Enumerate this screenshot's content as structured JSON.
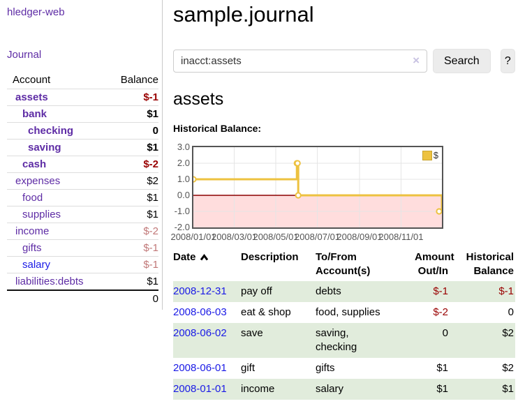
{
  "app": {
    "brand": "hledger-web",
    "nav_journal": "Journal"
  },
  "sidebar": {
    "headers": {
      "account": "Account",
      "balance": "Balance"
    },
    "accounts": [
      {
        "name": "assets",
        "balance": "$-1"
      },
      {
        "name": "bank",
        "balance": "$1"
      },
      {
        "name": "checking",
        "balance": "0"
      },
      {
        "name": "saving",
        "balance": "$1"
      },
      {
        "name": "cash",
        "balance": "$-2"
      },
      {
        "name": "expenses",
        "balance": "$2"
      },
      {
        "name": "food",
        "balance": "$1"
      },
      {
        "name": "supplies",
        "balance": "$1"
      },
      {
        "name": "income",
        "balance": "$-2"
      },
      {
        "name": "gifts",
        "balance": "$-1"
      },
      {
        "name": "salary",
        "balance": "$-1"
      },
      {
        "name": "liabilities:debts",
        "balance": "$1"
      }
    ],
    "total": "0"
  },
  "header": {
    "title": "sample.journal"
  },
  "search": {
    "value": "inacct:assets",
    "clear_icon": "×",
    "button_label": "Search",
    "help_label": "?"
  },
  "account_page": {
    "heading": "assets",
    "chart_title": "Historical Balance:"
  },
  "chart_data": {
    "type": "line",
    "title": "Historical Balance:",
    "step": true,
    "x_range_days": [
      0,
      365
    ],
    "ylim": [
      -2,
      3
    ],
    "yticks": [
      3.0,
      2.0,
      1.0,
      0.0,
      -1.0,
      -2.0
    ],
    "xticks": [
      {
        "day": 0,
        "label": "2008/01/01"
      },
      {
        "day": 60,
        "label": "2008/03/01"
      },
      {
        "day": 121,
        "label": "2008/05/01"
      },
      {
        "day": 182,
        "label": "2008/07/01"
      },
      {
        "day": 244,
        "label": "2008/09/01"
      },
      {
        "day": 305,
        "label": "2008/11/01"
      }
    ],
    "series": [
      {
        "name": "$",
        "color": "#edc240",
        "dates": [
          "2008-01-01",
          "2008-06-01",
          "2008-06-02",
          "2008-06-03",
          "2008-12-31"
        ],
        "x_days": [
          0,
          152,
          153,
          154,
          365
        ],
        "values": [
          1,
          2,
          2,
          0,
          -1
        ]
      }
    ],
    "grid_color": "#e5e5e5",
    "zero_line_color": "#8b0000",
    "negative_region_color": "#ffdddd",
    "legend_position": "top-right"
  },
  "register": {
    "headers": {
      "date": "Date",
      "description": "Description",
      "tofrom_line1": "To/From",
      "tofrom_line2": "Account(s)",
      "amount_line1": "Amount",
      "amount_line2": "Out/In",
      "balance_line1": "Historical",
      "balance_line2": "Balance"
    },
    "rows": [
      {
        "date": "2008-12-31",
        "description": "pay off",
        "accounts_line1": "debts",
        "accounts_line2": "",
        "amount": "$-1",
        "balance": "$-1"
      },
      {
        "date": "2008-06-03",
        "description": "eat & shop",
        "accounts_line1": "food, supplies",
        "accounts_line2": "",
        "amount": "$-2",
        "balance": "0"
      },
      {
        "date": "2008-06-02",
        "description": "save",
        "accounts_line1": "saving,",
        "accounts_line2": "checking",
        "amount": "0",
        "balance": "$2"
      },
      {
        "date": "2008-06-01",
        "description": "gift",
        "accounts_line1": "gifts",
        "accounts_line2": "",
        "amount": "$1",
        "balance": "$2"
      },
      {
        "date": "2008-01-01",
        "description": "income",
        "accounts_line1": "salary",
        "accounts_line2": "",
        "amount": "$1",
        "balance": "$1"
      }
    ]
  }
}
